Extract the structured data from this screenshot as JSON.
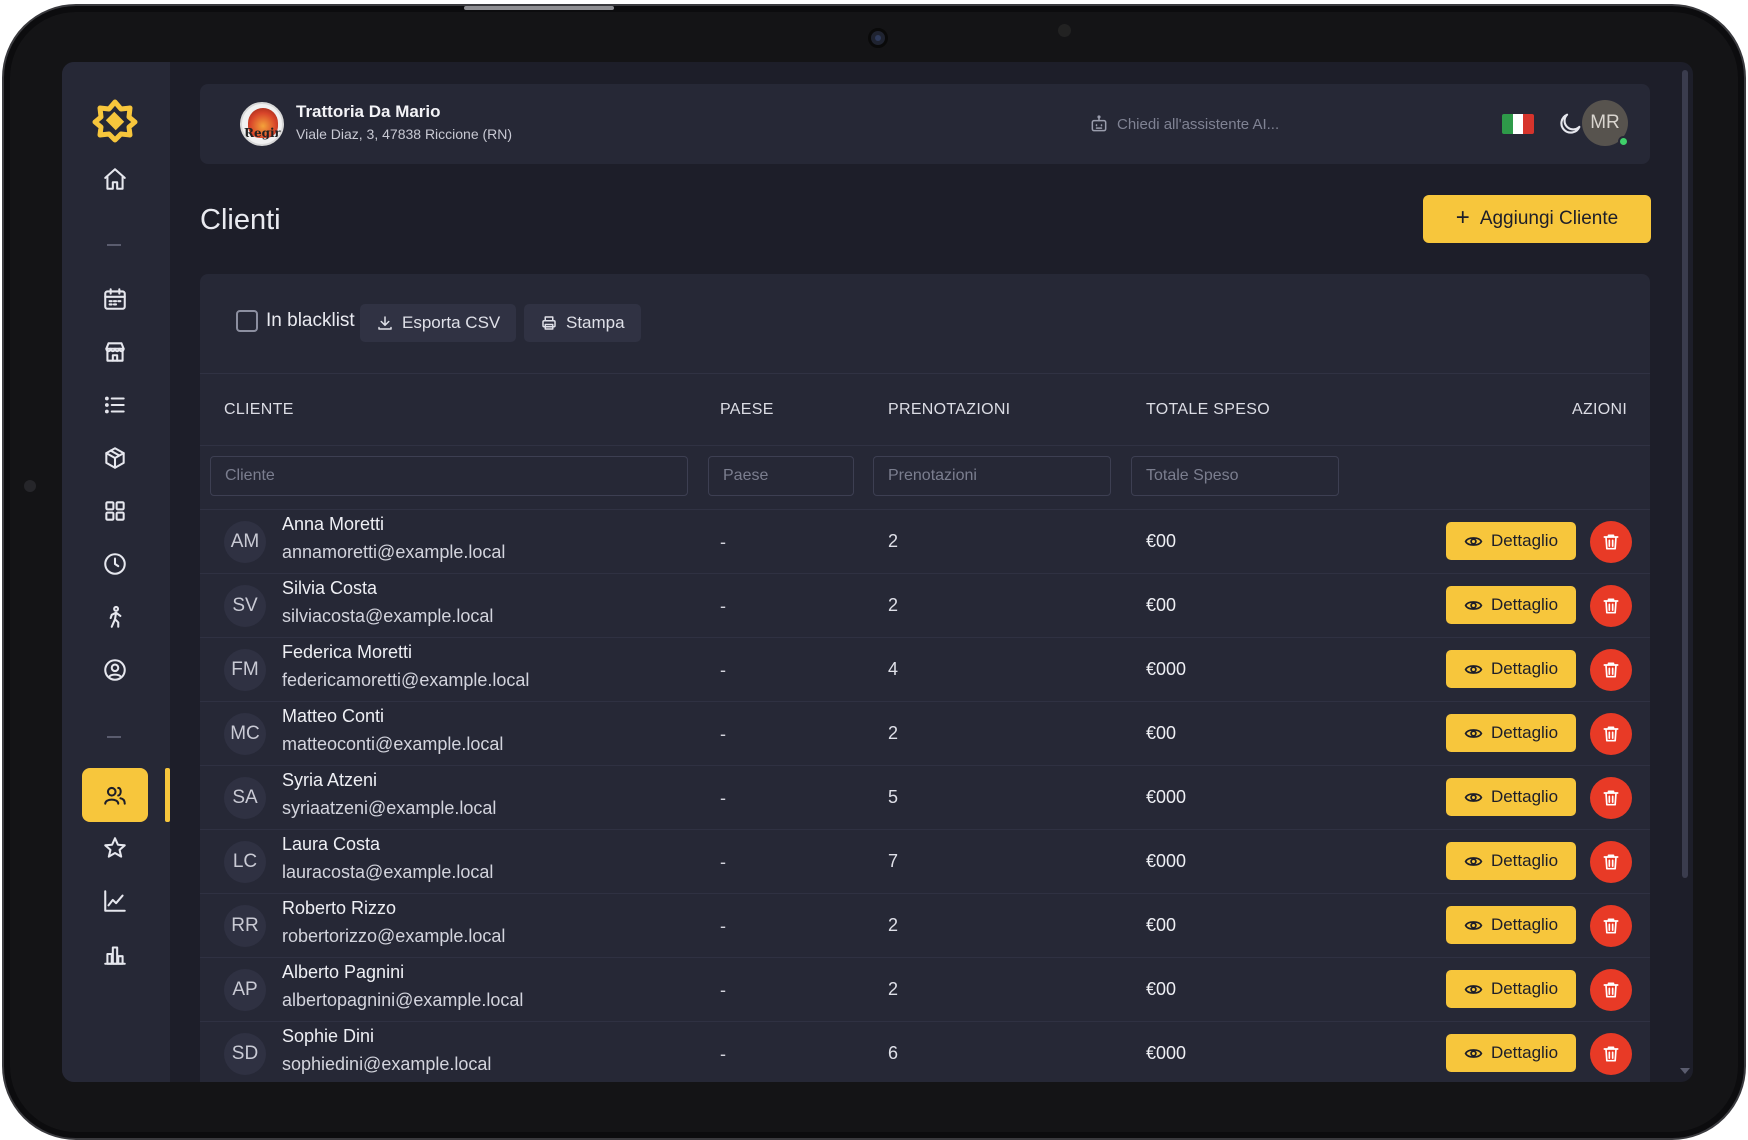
{
  "restaurant": {
    "name": "Trattoria Da Mario",
    "address": "Viale Diaz, 3, 47838 Riccione (RN)",
    "logo_text": "Regin"
  },
  "header": {
    "ai_placeholder": "Chiedi all'assistente AI...",
    "language_flag": "it-flag-icon",
    "user_initials": "MR"
  },
  "page": {
    "title": "Clienti",
    "add_button": "Aggiungi Cliente"
  },
  "toolbar": {
    "blacklist_label": "In blacklist",
    "export_label": "Esporta CSV",
    "print_label": "Stampa"
  },
  "table": {
    "columns": {
      "cliente": "CLIENTE",
      "paese": "PAESE",
      "prenotazioni": "PRENOTAZIONI",
      "totale": "TOTALE SPESO",
      "azioni": "AZIONI"
    },
    "filters": {
      "cliente": "Cliente",
      "paese": "Paese",
      "prenotazioni": "Prenotazioni",
      "totale": "Totale Speso"
    },
    "detail_label": "Dettaglio",
    "rows": [
      {
        "initials": "AM",
        "name": "Anna Moretti",
        "email": "annamoretti@example.local",
        "paese": "-",
        "prenotazioni": "2",
        "totale": "€00"
      },
      {
        "initials": "SV",
        "name": "Silvia Costa",
        "email": "silviacosta@example.local",
        "paese": "-",
        "prenotazioni": "2",
        "totale": "€00"
      },
      {
        "initials": "FM",
        "name": "Federica Moretti",
        "email": "federicamoretti@example.local",
        "paese": "-",
        "prenotazioni": "4",
        "totale": "€000"
      },
      {
        "initials": "MC",
        "name": "Matteo Conti",
        "email": "matteoconti@example.local",
        "paese": "-",
        "prenotazioni": "2",
        "totale": "€00"
      },
      {
        "initials": "SA",
        "name": "Syria Atzeni",
        "email": "syriaatzeni@example.local",
        "paese": "-",
        "prenotazioni": "5",
        "totale": "€000"
      },
      {
        "initials": "LC",
        "name": "Laura Costa",
        "email": "lauracosta@example.local",
        "paese": "-",
        "prenotazioni": "7",
        "totale": "€000"
      },
      {
        "initials": "RR",
        "name": "Roberto Rizzo",
        "email": "robertorizzo@example.local",
        "paese": "-",
        "prenotazioni": "2",
        "totale": "€00"
      },
      {
        "initials": "AP",
        "name": "Alberto Pagnini",
        "email": "albertopagnini@example.local",
        "paese": "-",
        "prenotazioni": "2",
        "totale": "€00"
      },
      {
        "initials": "SD",
        "name": "Sophie Dini",
        "email": "sophiedini@example.local",
        "paese": "-",
        "prenotazioni": "6",
        "totale": "€000"
      }
    ]
  },
  "colors": {
    "accent": "#f7c63c",
    "danger": "#e83a26",
    "background": "#1d1e29",
    "panel": "#262836"
  }
}
